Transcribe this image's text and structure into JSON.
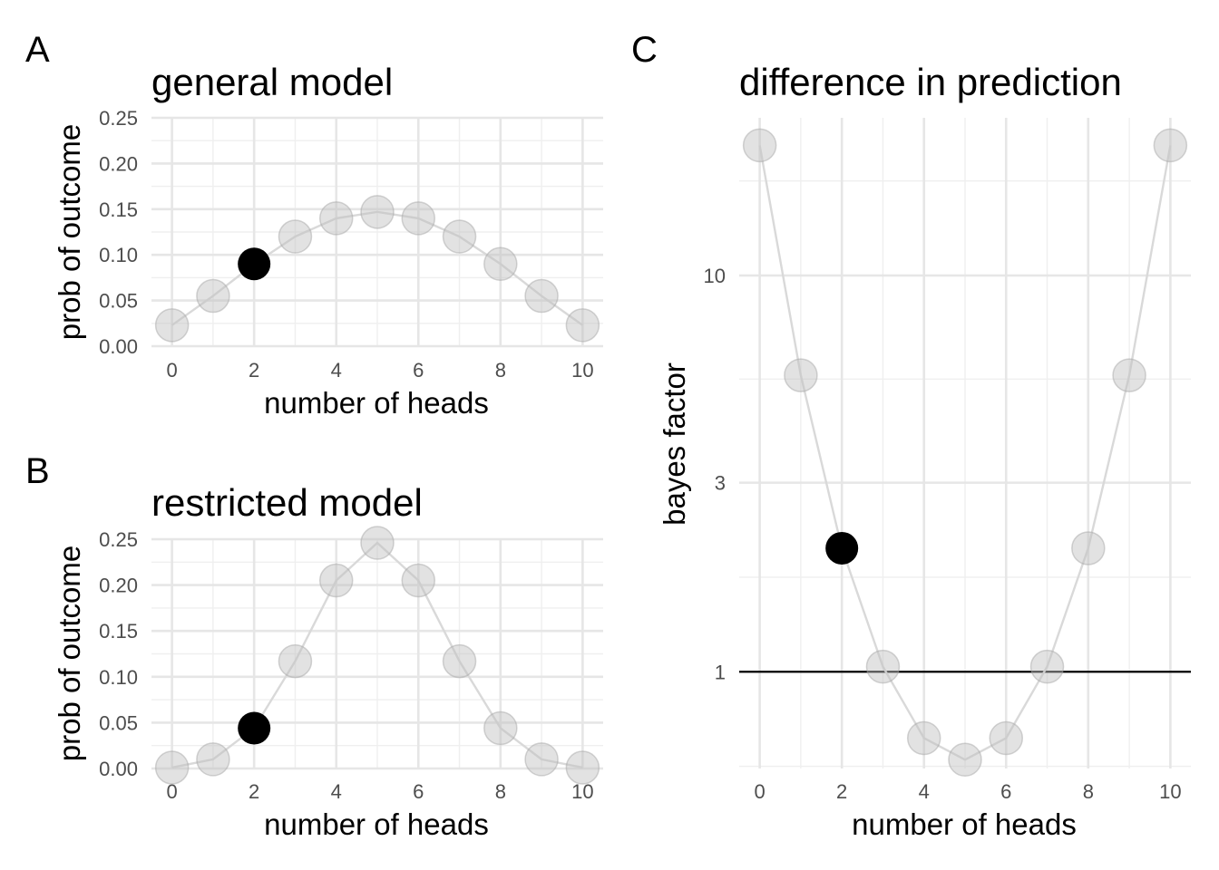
{
  "chart_data": [
    {
      "panel": "A",
      "type": "scatter",
      "title": "general model",
      "xlabel": "number of heads",
      "ylabel": "prob of outcome",
      "x": [
        0,
        1,
        2,
        3,
        4,
        5,
        6,
        7,
        8,
        9,
        10
      ],
      "values": [
        0.023,
        0.055,
        0.09,
        0.12,
        0.14,
        0.147,
        0.14,
        0.12,
        0.09,
        0.055,
        0.023
      ],
      "highlight_x": 2,
      "xlim": [
        -0.5,
        10.5
      ],
      "ylim": [
        0,
        0.25
      ],
      "xticks": [
        0,
        2,
        4,
        6,
        8,
        10
      ],
      "yticks": [
        0,
        0.05,
        0.1,
        0.15,
        0.2,
        0.25
      ],
      "ytick_labels": [
        "0.00",
        "0.05",
        "0.10",
        "0.15",
        "0.20",
        "0.25"
      ],
      "grid": true
    },
    {
      "panel": "B",
      "type": "scatter",
      "title": "restricted model",
      "xlabel": "number of heads",
      "ylabel": "prob of outcome",
      "x": [
        0,
        1,
        2,
        3,
        4,
        5,
        6,
        7,
        8,
        9,
        10
      ],
      "values": [
        0.001,
        0.01,
        0.044,
        0.117,
        0.205,
        0.246,
        0.205,
        0.117,
        0.044,
        0.01,
        0.001
      ],
      "highlight_x": 2,
      "xlim": [
        -0.5,
        10.5
      ],
      "ylim": [
        0,
        0.25
      ],
      "xticks": [
        0,
        2,
        4,
        6,
        8,
        10
      ],
      "yticks": [
        0,
        0.05,
        0.1,
        0.15,
        0.2,
        0.25
      ],
      "ytick_labels": [
        "0.00",
        "0.05",
        "0.10",
        "0.15",
        "0.20",
        "0.25"
      ],
      "grid": true
    },
    {
      "panel": "C",
      "type": "scatter",
      "title": "difference in prediction",
      "xlabel": "number of heads",
      "ylabel": "bayes factor",
      "x": [
        0,
        1,
        2,
        3,
        4,
        5,
        6,
        7,
        8,
        9,
        10
      ],
      "values": [
        21.3,
        5.6,
        2.05,
        1.03,
        0.68,
        0.6,
        0.68,
        1.03,
        2.05,
        5.6,
        21.3
      ],
      "highlight_x": 2,
      "y_scale": "log",
      "ylim": [
        0.57,
        25
      ],
      "xlim": [
        -0.5,
        10.5
      ],
      "xticks": [
        0,
        2,
        4,
        6,
        8,
        10
      ],
      "yticks": [
        1,
        3,
        10
      ],
      "ytick_labels": [
        "1",
        "3",
        "10"
      ],
      "reference_line_y": 1,
      "grid": true
    }
  ]
}
